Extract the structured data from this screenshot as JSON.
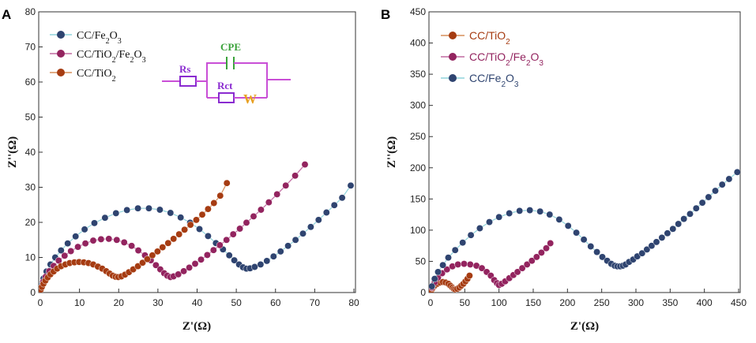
{
  "colors": {
    "fe2o3": "#2f4470",
    "tio2fe2o3": "#93245f",
    "tio2": "#a63c12",
    "fe2o3_line": "#8fd4dc",
    "tio2fe2o3_line": "#c06aa0",
    "tio2_line": "#d68f5a",
    "circuit_wire": "#c94fd6",
    "circuit_label": "#3aa23a",
    "circuit_resistor": "#8a2bd0",
    "circuit_w": "#e8a020"
  },
  "figure": {
    "panels": [
      "A",
      "B"
    ]
  },
  "circuit": {
    "rs": "Rs",
    "cpe": "CPE",
    "rct": "Rct",
    "w": "W"
  },
  "chart_data": [
    {
      "panel": "A",
      "type": "scatter",
      "xlabel": "Z'(Ω)",
      "ylabel": "Z''(Ω)",
      "xlim": [
        0,
        80
      ],
      "ylim": [
        0,
        80
      ],
      "xticks": [
        0,
        10,
        20,
        30,
        40,
        50,
        60,
        70,
        80
      ],
      "yticks": [
        0,
        10,
        20,
        30,
        40,
        50,
        60,
        70,
        80
      ],
      "legend_position": "top-left",
      "series": [
        {
          "key": "fe2o3",
          "name": "CC/Fe2O3",
          "display": [
            "CC/Fe",
            "2",
            "O",
            "3",
            ""
          ],
          "x": [
            0.3,
            0.8,
            1.6,
            2.6,
            3.8,
            5.3,
            7.0,
            9.0,
            11.3,
            13.8,
            16.5,
            19.3,
            22.1,
            24.9,
            27.7,
            30.5,
            33.2,
            35.8,
            38.2,
            40.6,
            42.8,
            44.8,
            46.6,
            48.2,
            49.5,
            50.7,
            51.7,
            52.6,
            53.5,
            54.7,
            56.2,
            57.8,
            59.5,
            61.3,
            63.2,
            65.1,
            67.0,
            69.0,
            71.0,
            73.0,
            75.0,
            77.0,
            79.2
          ],
          "y": [
            2.0,
            4.0,
            6.0,
            8.0,
            10.0,
            12.0,
            14.0,
            16.0,
            18.0,
            19.8,
            21.3,
            22.6,
            23.5,
            24.0,
            24.0,
            23.6,
            22.7,
            21.4,
            19.9,
            18.1,
            16.1,
            14.1,
            12.3,
            10.6,
            9.2,
            8.0,
            7.2,
            6.8,
            6.9,
            7.3,
            8.0,
            9.0,
            10.3,
            11.7,
            13.3,
            15.0,
            16.8,
            18.7,
            20.7,
            22.8,
            24.9,
            27.0,
            30.5
          ]
        },
        {
          "key": "tio2fe2o3",
          "name": "CC/TiO2/Fe2O3",
          "display": [
            "CC/TiO",
            "2",
            "/Fe",
            "2",
            "O",
            "3",
            ""
          ],
          "x": [
            0.2,
            0.7,
            1.4,
            2.3,
            3.4,
            4.7,
            6.2,
            7.8,
            9.6,
            11.5,
            13.5,
            15.5,
            17.5,
            19.5,
            21.4,
            23.3,
            25.0,
            26.7,
            28.2,
            29.5,
            30.6,
            31.6,
            32.4,
            33.2,
            34.0,
            35.2,
            36.6,
            38.0,
            39.5,
            41.0,
            42.6,
            44.2,
            45.8,
            47.5,
            49.2,
            50.9,
            52.6,
            54.4,
            56.3,
            58.3,
            60.4,
            62.6,
            65.0,
            67.5
          ],
          "y": [
            1.5,
            3.0,
            4.5,
            6.1,
            7.6,
            9.1,
            10.5,
            11.8,
            13.0,
            14.0,
            14.8,
            15.2,
            15.3,
            15.0,
            14.3,
            13.3,
            12.0,
            10.6,
            9.2,
            7.8,
            6.6,
            5.5,
            4.8,
            4.4,
            4.6,
            5.2,
            6.1,
            7.1,
            8.2,
            9.4,
            10.7,
            12.1,
            13.5,
            15.0,
            16.6,
            18.2,
            19.9,
            21.7,
            23.6,
            25.7,
            28.0,
            30.5,
            33.3,
            36.5
          ]
        },
        {
          "key": "tio2",
          "name": "CC/TiO2",
          "display": [
            "CC/TiO",
            "2",
            ""
          ],
          "x": [
            0.1,
            0.4,
            0.8,
            1.3,
            1.9,
            2.6,
            3.4,
            4.3,
            5.3,
            6.4,
            7.5,
            8.7,
            9.9,
            11.1,
            12.3,
            13.5,
            14.7,
            15.8,
            16.8,
            17.7,
            18.5,
            19.2,
            19.9,
            20.7,
            21.6,
            22.6,
            23.7,
            24.9,
            26.1,
            27.3,
            28.6,
            29.9,
            31.2,
            32.6,
            34.0,
            35.4,
            36.8,
            38.3,
            39.8,
            41.3,
            42.8,
            44.3,
            45.9,
            47.6
          ],
          "y": [
            0.8,
            1.6,
            2.5,
            3.4,
            4.3,
            5.2,
            6.0,
            6.8,
            7.5,
            8.0,
            8.4,
            8.6,
            8.7,
            8.6,
            8.4,
            8.0,
            7.4,
            6.8,
            6.1,
            5.4,
            4.8,
            4.5,
            4.4,
            4.6,
            5.1,
            5.8,
            6.6,
            7.5,
            8.5,
            9.5,
            10.6,
            11.7,
            12.9,
            14.1,
            15.3,
            16.6,
            17.9,
            19.3,
            20.7,
            22.2,
            23.8,
            25.5,
            27.6,
            31.2
          ]
        }
      ]
    },
    {
      "panel": "B",
      "type": "scatter",
      "xlabel": "Z'(Ω)",
      "ylabel": "Z''(Ω)",
      "xlim": [
        0,
        450
      ],
      "ylim": [
        0,
        450
      ],
      "xticks": [
        0,
        50,
        100,
        150,
        200,
        250,
        300,
        350,
        400,
        450
      ],
      "yticks": [
        0,
        50,
        100,
        150,
        200,
        250,
        300,
        350,
        400,
        450
      ],
      "legend_position": "top-left",
      "series": [
        {
          "key": "tio2",
          "name": "CC/TiO2",
          "display": [
            "CC/TiO",
            "2",
            ""
          ],
          "x": [
            1,
            3,
            6,
            10,
            14,
            18,
            22,
            26,
            29,
            32,
            34,
            36,
            39,
            42,
            45,
            48,
            51,
            54,
            57
          ],
          "y": [
            3,
            7,
            11,
            14,
            16,
            17,
            16,
            14,
            11,
            8,
            6,
            5,
            6,
            8,
            11,
            14,
            18,
            22,
            27
          ]
        },
        {
          "key": "tio2fe2o3",
          "name": "CC/TiO2/Fe2O3",
          "display": [
            "CC/TiO",
            "2",
            "/Fe",
            "2",
            "O",
            "3",
            ""
          ],
          "x": [
            2,
            6,
            11,
            17,
            24,
            32,
            40,
            49,
            58,
            67,
            75,
            82,
            88,
            93,
            97,
            100,
            104,
            109,
            115,
            121,
            127,
            134,
            141,
            148,
            155,
            162,
            169,
            175
          ],
          "y": [
            8,
            16,
            24,
            31,
            37,
            42,
            45,
            46,
            45,
            43,
            39,
            33,
            27,
            20,
            15,
            12,
            14,
            18,
            23,
            28,
            33,
            39,
            45,
            51,
            57,
            64,
            71,
            79
          ]
        },
        {
          "key": "fe2o3",
          "name": "CC/Fe2O3",
          "display": [
            "CC/Fe",
            "2",
            "O",
            "3",
            ""
          ],
          "x": [
            2,
            6,
            11,
            18,
            26,
            36,
            47,
            59,
            72,
            86,
            100,
            115,
            130,
            145,
            160,
            174,
            188,
            201,
            213,
            224,
            234,
            243,
            251,
            258,
            264,
            269,
            273,
            277,
            281,
            285,
            290,
            296,
            302,
            309,
            316,
            323,
            330,
            338,
            346,
            354,
            362,
            370,
            379,
            388,
            397,
            406,
            416,
            426,
            436,
            448
          ],
          "y": [
            10,
            22,
            33,
            44,
            56,
            68,
            80,
            92,
            103,
            113,
            121,
            127,
            131,
            132,
            130,
            125,
            117,
            107,
            96,
            85,
            74,
            65,
            57,
            51,
            46,
            43,
            42,
            42,
            43,
            45,
            49,
            53,
            58,
            63,
            69,
            75,
            81,
            88,
            95,
            102,
            110,
            118,
            126,
            135,
            144,
            153,
            163,
            173,
            182,
            193
          ]
        }
      ]
    }
  ]
}
